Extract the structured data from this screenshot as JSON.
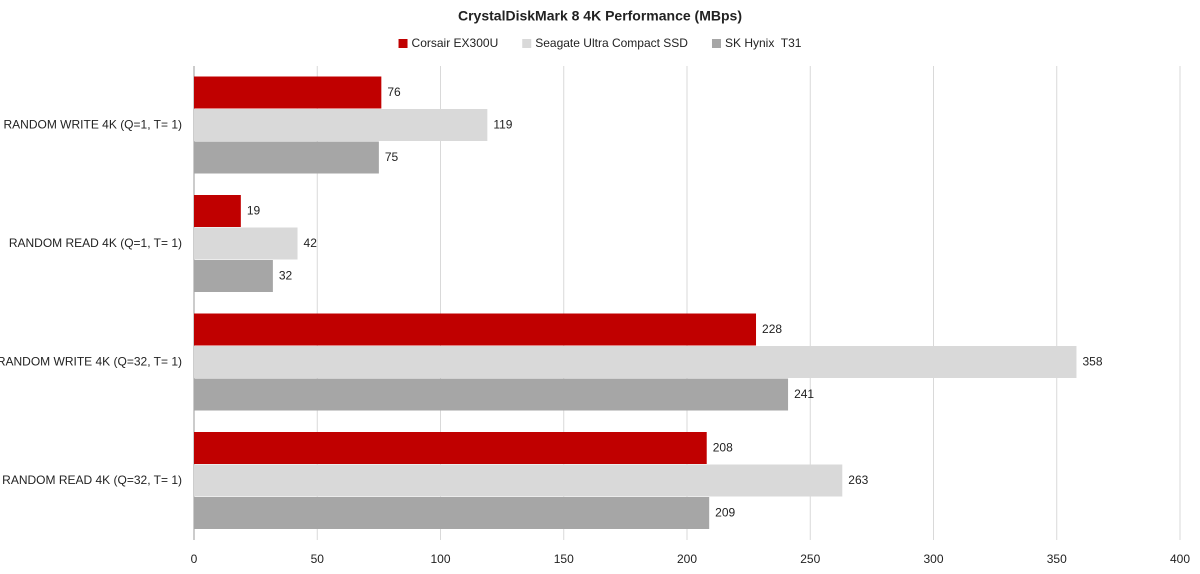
{
  "chart_data": {
    "type": "hbar",
    "title": "CrystalDiskMark 8 4K Performance (MBps)",
    "categories": [
      "RANDOM WRITE 4K (Q=1, T= 1)",
      "RANDOM READ 4K (Q=1, T= 1)",
      "RANDOM WRITE 4K (Q=32, T= 1)",
      "RANDOM READ 4K (Q=32, T= 1)"
    ],
    "series": [
      {
        "name": "Corsair EX300U",
        "color": "#c00000",
        "values": [
          76,
          19,
          228,
          208
        ]
      },
      {
        "name": "Seagate Ultra Compact SSD",
        "color": "#d9d9d9",
        "values": [
          119,
          42,
          358,
          263
        ]
      },
      {
        "name": "SK Hynix  T31",
        "color": "#a6a6a6",
        "values": [
          75,
          32,
          241,
          209
        ]
      }
    ],
    "xlim": [
      0,
      400
    ],
    "xticks": [
      0,
      50,
      100,
      150,
      200,
      250,
      300,
      350,
      400
    ],
    "grid": true,
    "legend": "top"
  }
}
